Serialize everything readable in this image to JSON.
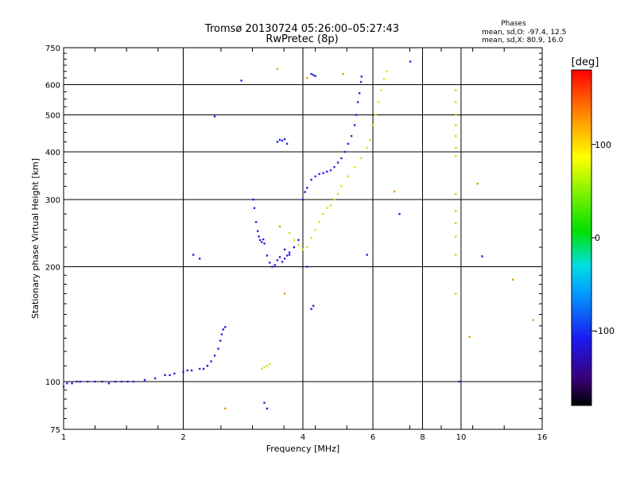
{
  "chart_data": {
    "type": "scatter",
    "title": "Tromsø 20130724 05:26:00–05:27:43",
    "subtitle": "RwPretec (8p)",
    "xlabel": "Frequency [MHz]",
    "ylabel": "Stationary phase Virtual Height [km]",
    "xscale": "log2",
    "yscale": "log",
    "xlim": [
      1,
      16
    ],
    "ylim": [
      75,
      750
    ],
    "xticks": [
      1,
      2,
      4,
      6,
      8,
      10,
      16
    ],
    "xtick_labels": [
      "1",
      "2",
      "4",
      "6",
      "8",
      "10",
      "16"
    ],
    "yticks": [
      75,
      100,
      200,
      300,
      400,
      500,
      600,
      750
    ],
    "ytick_labels": [
      "75",
      "100",
      "200",
      "300",
      "400",
      "500",
      "600",
      "750"
    ],
    "grid": true,
    "stats": {
      "heading": "Phases",
      "line1": "mean, sd,O: -97.4, 12.5",
      "line2": "mean, sd,X:  80.9, 16.0"
    },
    "colorbar": {
      "label": "[deg]",
      "range": [
        -180,
        180
      ],
      "ticks": [
        100,
        0,
        -100
      ],
      "tick_labels": [
        "100",
        "0",
        "-100"
      ]
    },
    "series": [
      {
        "trace": "o-lower",
        "phase_deg": -100,
        "color": "#2a20e0",
        "x": [
          1.0,
          1.02,
          1.05,
          1.08,
          1.1,
          1.15,
          1.2,
          1.25,
          1.3,
          1.35,
          1.4,
          1.45,
          1.5,
          1.6,
          1.7,
          1.8,
          1.85,
          1.9,
          2.0,
          2.05,
          2.1,
          2.2,
          2.25,
          2.3,
          2.35,
          2.4,
          2.45,
          2.48,
          2.5,
          2.52,
          2.55
        ],
        "y": [
          97,
          99,
          99,
          100,
          100,
          100,
          100,
          100,
          99,
          100,
          100,
          100,
          100,
          101,
          102,
          104,
          104,
          105,
          106,
          107,
          107,
          108,
          108,
          110,
          113,
          117,
          122,
          128,
          133,
          137,
          139
        ]
      },
      {
        "trace": "o-f1",
        "phase_deg": -110,
        "color": "#2a20e0",
        "x": [
          3.0,
          3.02,
          3.05,
          3.08,
          3.1,
          3.12,
          3.15,
          3.18,
          3.2,
          3.25,
          3.3,
          3.35,
          3.4,
          3.45,
          3.5,
          3.55,
          3.6,
          3.65,
          3.7,
          3.8,
          3.9
        ],
        "y": [
          300,
          285,
          262,
          248,
          240,
          235,
          232,
          236,
          230,
          214,
          205,
          200,
          202,
          208,
          212,
          206,
          210,
          214,
          218,
          225,
          235
        ]
      },
      {
        "trace": "o-f2",
        "phase_deg": -100,
        "color": "#2a20e0",
        "x": [
          4.0,
          4.05,
          4.1,
          4.2,
          4.3,
          4.4,
          4.5,
          4.6,
          4.7,
          4.8,
          4.9,
          5.0,
          5.1,
          5.2,
          5.3,
          5.4,
          5.45,
          5.5,
          5.55,
          5.6,
          5.62
        ],
        "y": [
          300,
          314,
          322,
          338,
          345,
          350,
          352,
          355,
          358,
          365,
          375,
          385,
          400,
          420,
          440,
          470,
          500,
          540,
          570,
          610,
          630
        ]
      },
      {
        "trace": "o-spread",
        "phase_deg": -105,
        "color": "#2a20e0",
        "x": [
          3.45,
          3.5,
          3.55,
          3.6,
          3.65,
          4.2,
          4.25,
          4.3,
          3.6,
          3.7
        ],
        "y": [
          425,
          430,
          428,
          432,
          420,
          640,
          636,
          632,
          222,
          215
        ]
      },
      {
        "trace": "o-scatter",
        "phase_deg": -110,
        "color": "#2a20e0",
        "x": [
          2.4,
          2.2,
          2.12,
          2.8,
          3.2,
          3.25,
          4.1,
          4.25,
          5.8,
          7.0,
          7.45,
          11.3,
          9.9,
          4.2
        ],
        "y": [
          495,
          210,
          215,
          615,
          88,
          85,
          200,
          158,
          215,
          275,
          690,
          213,
          100,
          155
        ]
      },
      {
        "trace": "x-trace",
        "phase_deg": 90,
        "color": "#c0f000",
        "x": [
          3.7,
          3.8,
          3.9,
          4.0,
          4.1,
          4.2,
          4.3,
          4.4,
          4.5,
          4.6,
          4.7,
          4.8,
          4.9,
          5.0,
          5.2,
          5.4,
          5.6,
          5.8,
          5.9,
          6.0,
          6.1,
          6.2,
          6.3,
          6.4,
          6.5
        ],
        "y": [
          245,
          235,
          228,
          222,
          225,
          238,
          250,
          262,
          275,
          285,
          290,
          300,
          310,
          325,
          345,
          365,
          385,
          410,
          430,
          470,
          500,
          540,
          580,
          620,
          650
        ]
      },
      {
        "trace": "x-lower",
        "phase_deg": 90,
        "color": "#c0f000",
        "x": [
          3.15,
          3.2,
          3.25,
          3.3
        ],
        "y": [
          108,
          109,
          110,
          111
        ]
      },
      {
        "trace": "x-vertical",
        "phase_deg": 120,
        "color": "#f0c000",
        "x": [
          9.7,
          9.7,
          9.7,
          9.7,
          9.7,
          9.7,
          9.7,
          9.7,
          9.7,
          9.7,
          9.7,
          9.7,
          9.7
        ],
        "y": [
          580,
          540,
          500,
          470,
          440,
          410,
          390,
          310,
          280,
          260,
          240,
          215,
          170
        ]
      },
      {
        "trace": "misc",
        "phase_deg": 60,
        "color": "#e0a000",
        "x": [
          2.55,
          3.45,
          4.1,
          5.05,
          6.8,
          11.0,
          15.2,
          13.5,
          10.5,
          3.6,
          3.5
        ],
        "y": [
          85,
          660,
          625,
          640,
          315,
          330,
          145,
          185,
          131,
          170,
          255
        ]
      }
    ]
  }
}
